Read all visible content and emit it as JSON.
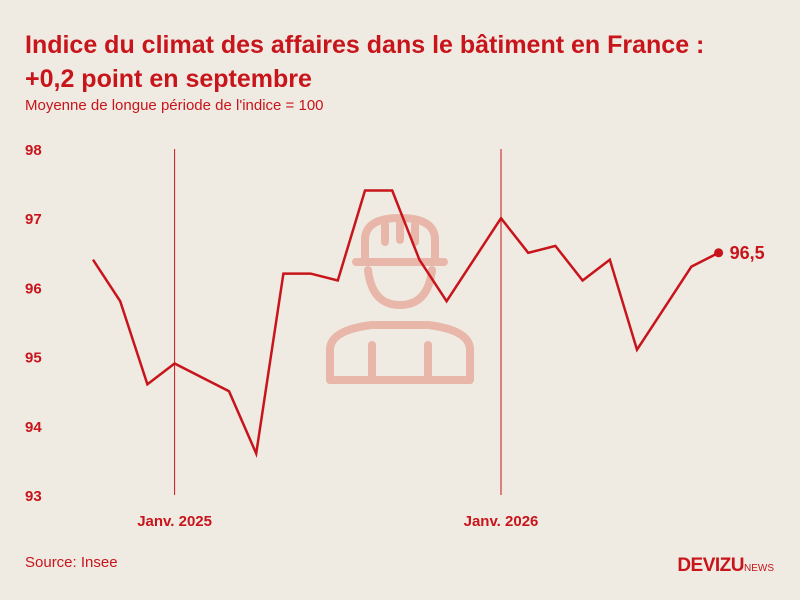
{
  "header": {
    "title_line1": "Indice du climat des affaires dans le bâtiment en France :",
    "title_line2": "+0,2 point en septembre",
    "subtitle": "Moyenne de longue période de l'indice = 100"
  },
  "footer": {
    "source": "Source: Insee",
    "logo_main": "DEVIZU",
    "logo_suffix": "NEWS"
  },
  "colors": {
    "accent": "#c8141b",
    "background": "#efebe2",
    "icon": "#e8b7a9"
  },
  "icon": "construction-worker-icon",
  "chart_data": {
    "type": "line",
    "title": "Indice du climat des affaires dans le bâtiment en France : +0,2 point en septembre",
    "subtitle": "Moyenne de longue période de l'indice = 100",
    "ylim": [
      93,
      98
    ],
    "yticks": [
      "98",
      "97",
      "96",
      "95",
      "94",
      "93"
    ],
    "xticks": [
      "Janv. 2025",
      "Janv. 2026"
    ],
    "x": [
      "2024-10",
      "2024-11",
      "2024-12",
      "2025-01",
      "2025-02",
      "2025-03",
      "2025-04",
      "2025-05",
      "2025-06",
      "2025-07",
      "2025-08",
      "2025-09",
      "2025-10",
      "2025-11",
      "2025-12",
      "2026-01",
      "2026-02",
      "2026-03",
      "2026-04",
      "2026-05",
      "2026-06",
      "2026-07",
      "2026-08",
      "2026-09"
    ],
    "values": [
      96.4,
      95.8,
      94.6,
      94.9,
      94.7,
      94.5,
      93.6,
      96.2,
      96.2,
      96.1,
      97.4,
      97.4,
      96.4,
      95.8,
      96.4,
      97.0,
      96.5,
      96.6,
      96.1,
      96.4,
      95.1,
      95.7,
      96.3,
      96.5
    ],
    "last_label": "96,5",
    "grid": false
  }
}
